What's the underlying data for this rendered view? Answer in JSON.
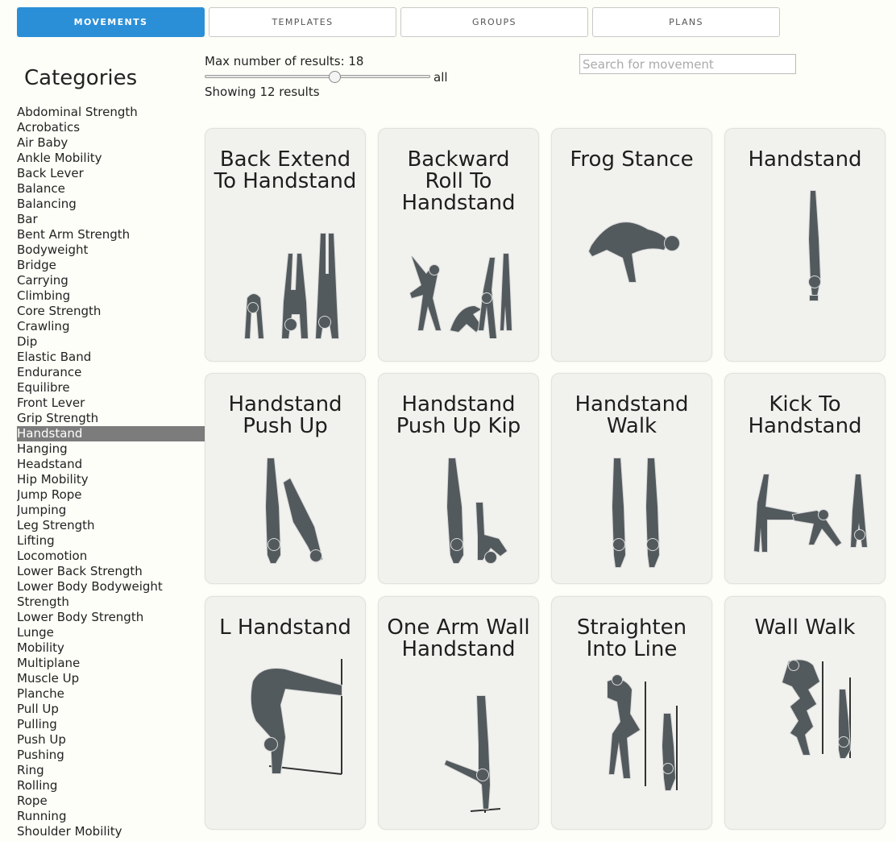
{
  "tabs": [
    {
      "label": "MOVEMENTS",
      "active": true
    },
    {
      "label": "TEMPLATES",
      "active": false
    },
    {
      "label": "GROUPS",
      "active": false
    },
    {
      "label": "PLANS",
      "active": false
    }
  ],
  "sidebar": {
    "title": "Categories",
    "selected": "Handstand",
    "items": [
      "Abdominal Strength",
      "Acrobatics",
      "Air Baby",
      "Ankle Mobility",
      "Back Lever",
      "Balance",
      "Balancing",
      "Bar",
      "Bent Arm Strength",
      "Bodyweight",
      "Bridge",
      "Carrying",
      "Climbing",
      "Core Strength",
      "Crawling",
      "Dip",
      "Elastic Band",
      "Endurance",
      "Equilibre",
      "Front Lever",
      "Grip Strength",
      "Handstand",
      "Hanging",
      "Headstand",
      "Hip Mobility",
      "Jump Rope",
      "Jumping",
      "Leg Strength",
      "Lifting",
      "Locomotion",
      "Lower Back Strength",
      "Lower Body Bodyweight Strength",
      "Lower Body Strength",
      "Lunge",
      "Mobility",
      "Multiplane",
      "Muscle Up",
      "Planche",
      "Pull Up",
      "Pulling",
      "Push Up",
      "Pushing",
      "Ring",
      "Rolling",
      "Rope",
      "Running",
      "Shoulder Mobility"
    ]
  },
  "controls": {
    "max_results_label": "Max number of results: 18",
    "slider_value_fraction": 0.58,
    "slider_end_label": "all",
    "showing_label": "Showing 12 results",
    "search_placeholder": "Search for movement",
    "search_value": ""
  },
  "cards": [
    {
      "title": "Back Extend To Handstand",
      "icon": "back-extend-to-handstand-figure"
    },
    {
      "title": "Backward Roll To Handstand",
      "icon": "backward-roll-to-handstand-figure"
    },
    {
      "title": "Frog Stance",
      "icon": "frog-stance-figure"
    },
    {
      "title": "Handstand",
      "icon": "handstand-figure"
    },
    {
      "title": "Handstand Push Up",
      "icon": "handstand-push-up-figure"
    },
    {
      "title": "Handstand Push Up Kip",
      "icon": "handstand-push-up-kip-figure"
    },
    {
      "title": "Handstand Walk",
      "icon": "handstand-walk-figure"
    },
    {
      "title": "Kick To Handstand",
      "icon": "kick-to-handstand-figure"
    },
    {
      "title": "L Handstand",
      "icon": "l-handstand-figure"
    },
    {
      "title": "One Arm Wall Handstand",
      "icon": "one-arm-wall-handstand-figure"
    },
    {
      "title": "Straighten Into Line",
      "icon": "straighten-into-line-figure"
    },
    {
      "title": "Wall Walk",
      "icon": "wall-walk-figure"
    }
  ],
  "colors": {
    "accent": "#2b8fd8",
    "selected_category_bg": "#7c7c7c",
    "card_bg": "#f1f1ee",
    "figure": "#535a5d",
    "page_bg": "#fefef8"
  }
}
